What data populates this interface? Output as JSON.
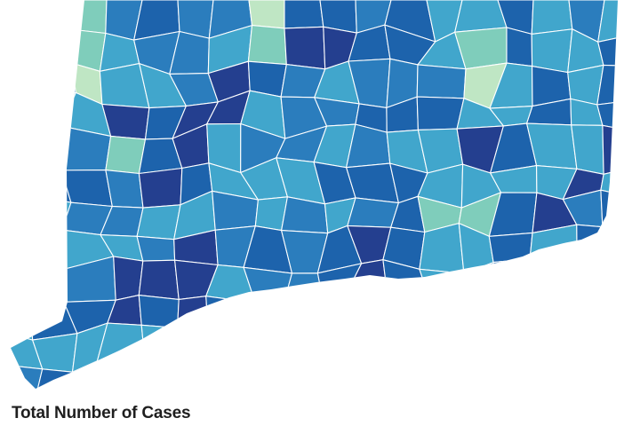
{
  "map": {
    "region": "Connecticut",
    "shading_levels": [
      {
        "level": 1,
        "color": "#bfe6c4"
      },
      {
        "level": 2,
        "color": "#7fcdbb"
      },
      {
        "level": 3,
        "color": "#41a6cc"
      },
      {
        "level": 4,
        "color": "#2b7dbd"
      },
      {
        "level": 5,
        "color": "#1d63ac"
      },
      {
        "level": 6,
        "color": "#243f8f"
      }
    ]
  },
  "legend": {
    "title": "Total Number of Cases"
  }
}
